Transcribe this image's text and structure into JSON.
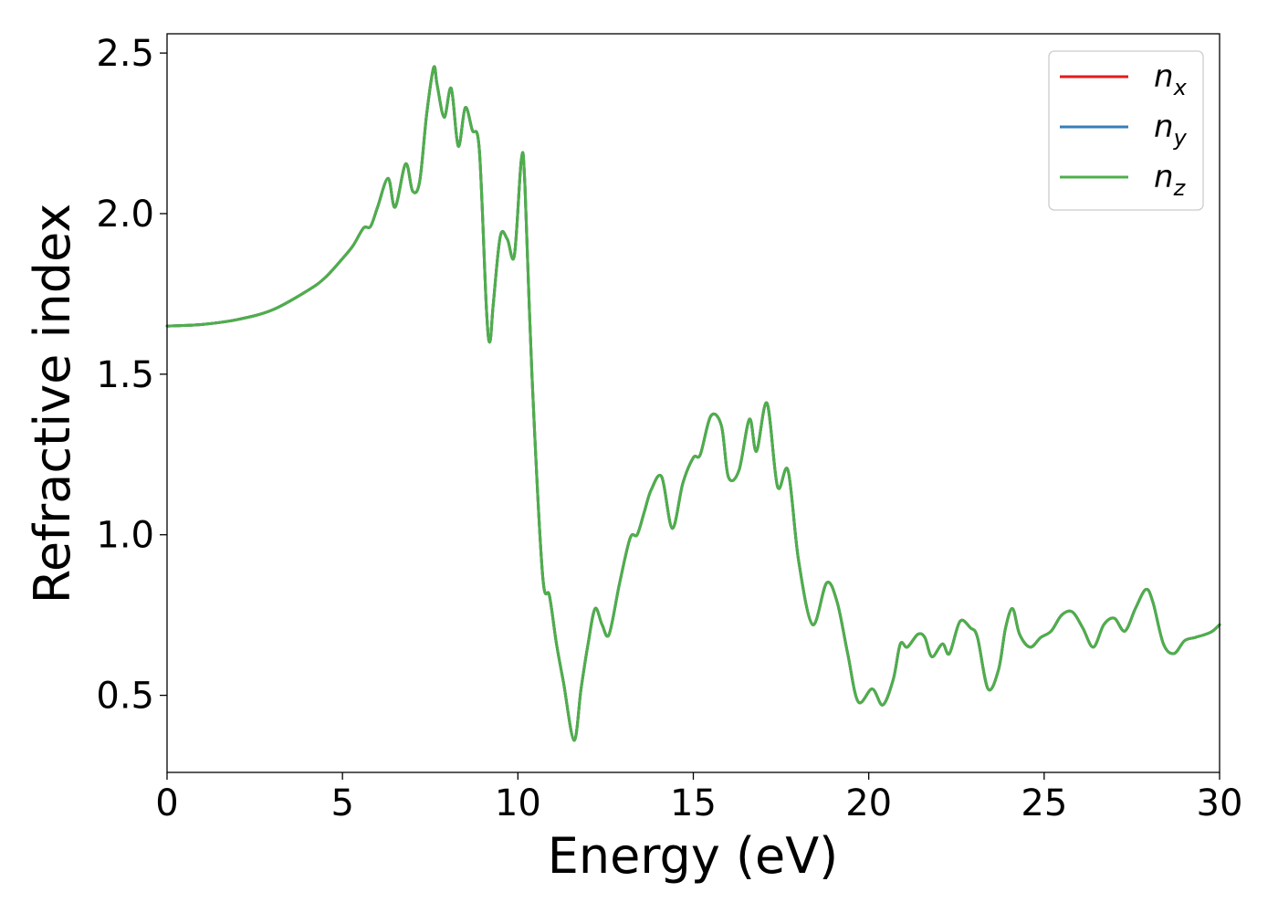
{
  "chart_data": {
    "type": "line",
    "title": "",
    "xlabel": "Energy (eV)",
    "ylabel": "Refractive index",
    "xlim": [
      0,
      30
    ],
    "ylim": [
      0.26,
      2.56
    ],
    "xticks": [
      0,
      5,
      10,
      15,
      20,
      25,
      30
    ],
    "xtick_labels": [
      "0",
      "5",
      "10",
      "15",
      "20",
      "25",
      "30"
    ],
    "yticks": [
      0.5,
      1.0,
      1.5,
      2.0,
      2.5
    ],
    "ytick_labels": [
      "0.5",
      "1.0",
      "1.5",
      "2.0",
      "2.5"
    ],
    "grid": false,
    "legend_position": "top-right",
    "x": [
      0,
      1,
      2,
      3,
      4,
      4.5,
      5,
      5.3,
      5.6,
      5.8,
      6.0,
      6.3,
      6.5,
      6.8,
      7.0,
      7.2,
      7.4,
      7.6,
      7.7,
      7.9,
      8.1,
      8.3,
      8.5,
      8.7,
      8.9,
      9.1,
      9.2,
      9.3,
      9.5,
      9.7,
      9.9,
      10.1,
      10.2,
      10.4,
      10.7,
      10.9,
      11.1,
      11.3,
      11.6,
      11.8,
      12.0,
      12.2,
      12.4,
      12.6,
      12.9,
      13.2,
      13.4,
      13.6,
      13.8,
      14.1,
      14.4,
      14.7,
      15.0,
      15.2,
      15.5,
      15.8,
      16.0,
      16.3,
      16.6,
      16.8,
      17.1,
      17.4,
      17.7,
      18.0,
      18.4,
      18.8,
      19.1,
      19.4,
      19.7,
      20.1,
      20.4,
      20.7,
      20.9,
      21.1,
      21.4,
      21.6,
      21.8,
      22.1,
      22.3,
      22.6,
      22.9,
      23.1,
      23.4,
      23.7,
      23.9,
      24.1,
      24.3,
      24.6,
      24.9,
      25.2,
      25.5,
      25.8,
      26.1,
      26.4,
      26.7,
      27.0,
      27.3,
      27.6,
      27.9,
      28.1,
      28.4,
      28.7,
      29.0,
      29.3,
      29.6,
      29.8,
      30.0
    ],
    "series": [
      {
        "name": "n_x",
        "color": "#e41a1c",
        "values": [
          1.65,
          1.655,
          1.67,
          1.7,
          1.76,
          1.8,
          1.86,
          1.9,
          1.955,
          1.96,
          2.02,
          2.11,
          2.02,
          2.155,
          2.07,
          2.1,
          2.31,
          2.455,
          2.4,
          2.3,
          2.39,
          2.21,
          2.33,
          2.26,
          2.2,
          1.71,
          1.6,
          1.72,
          1.93,
          1.92,
          1.87,
          2.17,
          2.09,
          1.5,
          0.88,
          0.81,
          0.66,
          0.54,
          0.36,
          0.52,
          0.66,
          0.77,
          0.72,
          0.69,
          0.85,
          0.99,
          1.0,
          1.07,
          1.14,
          1.18,
          1.02,
          1.16,
          1.24,
          1.25,
          1.37,
          1.34,
          1.18,
          1.2,
          1.36,
          1.26,
          1.41,
          1.15,
          1.2,
          0.92,
          0.72,
          0.85,
          0.79,
          0.63,
          0.48,
          0.52,
          0.47,
          0.55,
          0.66,
          0.65,
          0.69,
          0.68,
          0.62,
          0.66,
          0.63,
          0.73,
          0.71,
          0.68,
          0.52,
          0.58,
          0.71,
          0.77,
          0.69,
          0.65,
          0.68,
          0.7,
          0.75,
          0.76,
          0.71,
          0.65,
          0.72,
          0.74,
          0.7,
          0.77,
          0.83,
          0.79,
          0.66,
          0.63,
          0.67,
          0.68,
          0.69,
          0.7,
          0.72
        ]
      },
      {
        "name": "n_y",
        "color": "#377eb8",
        "values": [
          1.65,
          1.655,
          1.67,
          1.7,
          1.76,
          1.8,
          1.86,
          1.9,
          1.955,
          1.96,
          2.02,
          2.11,
          2.02,
          2.155,
          2.07,
          2.1,
          2.31,
          2.455,
          2.4,
          2.3,
          2.39,
          2.21,
          2.33,
          2.26,
          2.2,
          1.71,
          1.6,
          1.72,
          1.93,
          1.92,
          1.87,
          2.17,
          2.09,
          1.5,
          0.88,
          0.81,
          0.66,
          0.54,
          0.36,
          0.52,
          0.66,
          0.77,
          0.72,
          0.69,
          0.85,
          0.99,
          1.0,
          1.07,
          1.14,
          1.18,
          1.02,
          1.16,
          1.24,
          1.25,
          1.37,
          1.34,
          1.18,
          1.2,
          1.36,
          1.26,
          1.41,
          1.15,
          1.2,
          0.92,
          0.72,
          0.85,
          0.79,
          0.63,
          0.48,
          0.52,
          0.47,
          0.55,
          0.66,
          0.65,
          0.69,
          0.68,
          0.62,
          0.66,
          0.63,
          0.73,
          0.71,
          0.68,
          0.52,
          0.58,
          0.71,
          0.77,
          0.69,
          0.65,
          0.68,
          0.7,
          0.75,
          0.76,
          0.71,
          0.65,
          0.72,
          0.74,
          0.7,
          0.77,
          0.83,
          0.79,
          0.66,
          0.63,
          0.67,
          0.68,
          0.69,
          0.7,
          0.72
        ]
      },
      {
        "name": "n_z",
        "color": "#4daf4a",
        "values": [
          1.65,
          1.655,
          1.67,
          1.7,
          1.76,
          1.8,
          1.86,
          1.9,
          1.955,
          1.96,
          2.02,
          2.11,
          2.02,
          2.155,
          2.07,
          2.1,
          2.31,
          2.455,
          2.4,
          2.3,
          2.39,
          2.21,
          2.33,
          2.26,
          2.2,
          1.71,
          1.6,
          1.72,
          1.93,
          1.92,
          1.87,
          2.17,
          2.09,
          1.5,
          0.88,
          0.81,
          0.66,
          0.54,
          0.36,
          0.52,
          0.66,
          0.77,
          0.72,
          0.69,
          0.85,
          0.99,
          1.0,
          1.07,
          1.14,
          1.18,
          1.02,
          1.16,
          1.24,
          1.25,
          1.37,
          1.34,
          1.18,
          1.2,
          1.36,
          1.26,
          1.41,
          1.15,
          1.2,
          0.92,
          0.72,
          0.85,
          0.79,
          0.63,
          0.48,
          0.52,
          0.47,
          0.55,
          0.66,
          0.65,
          0.69,
          0.68,
          0.62,
          0.66,
          0.63,
          0.73,
          0.71,
          0.68,
          0.52,
          0.58,
          0.71,
          0.77,
          0.69,
          0.65,
          0.68,
          0.7,
          0.75,
          0.76,
          0.71,
          0.65,
          0.72,
          0.74,
          0.7,
          0.77,
          0.83,
          0.79,
          0.66,
          0.63,
          0.67,
          0.68,
          0.69,
          0.7,
          0.72
        ]
      }
    ],
    "legend": [
      {
        "symbol": "n",
        "subscript": "x"
      },
      {
        "symbol": "n",
        "subscript": "y"
      },
      {
        "symbol": "n",
        "subscript": "z"
      }
    ]
  }
}
